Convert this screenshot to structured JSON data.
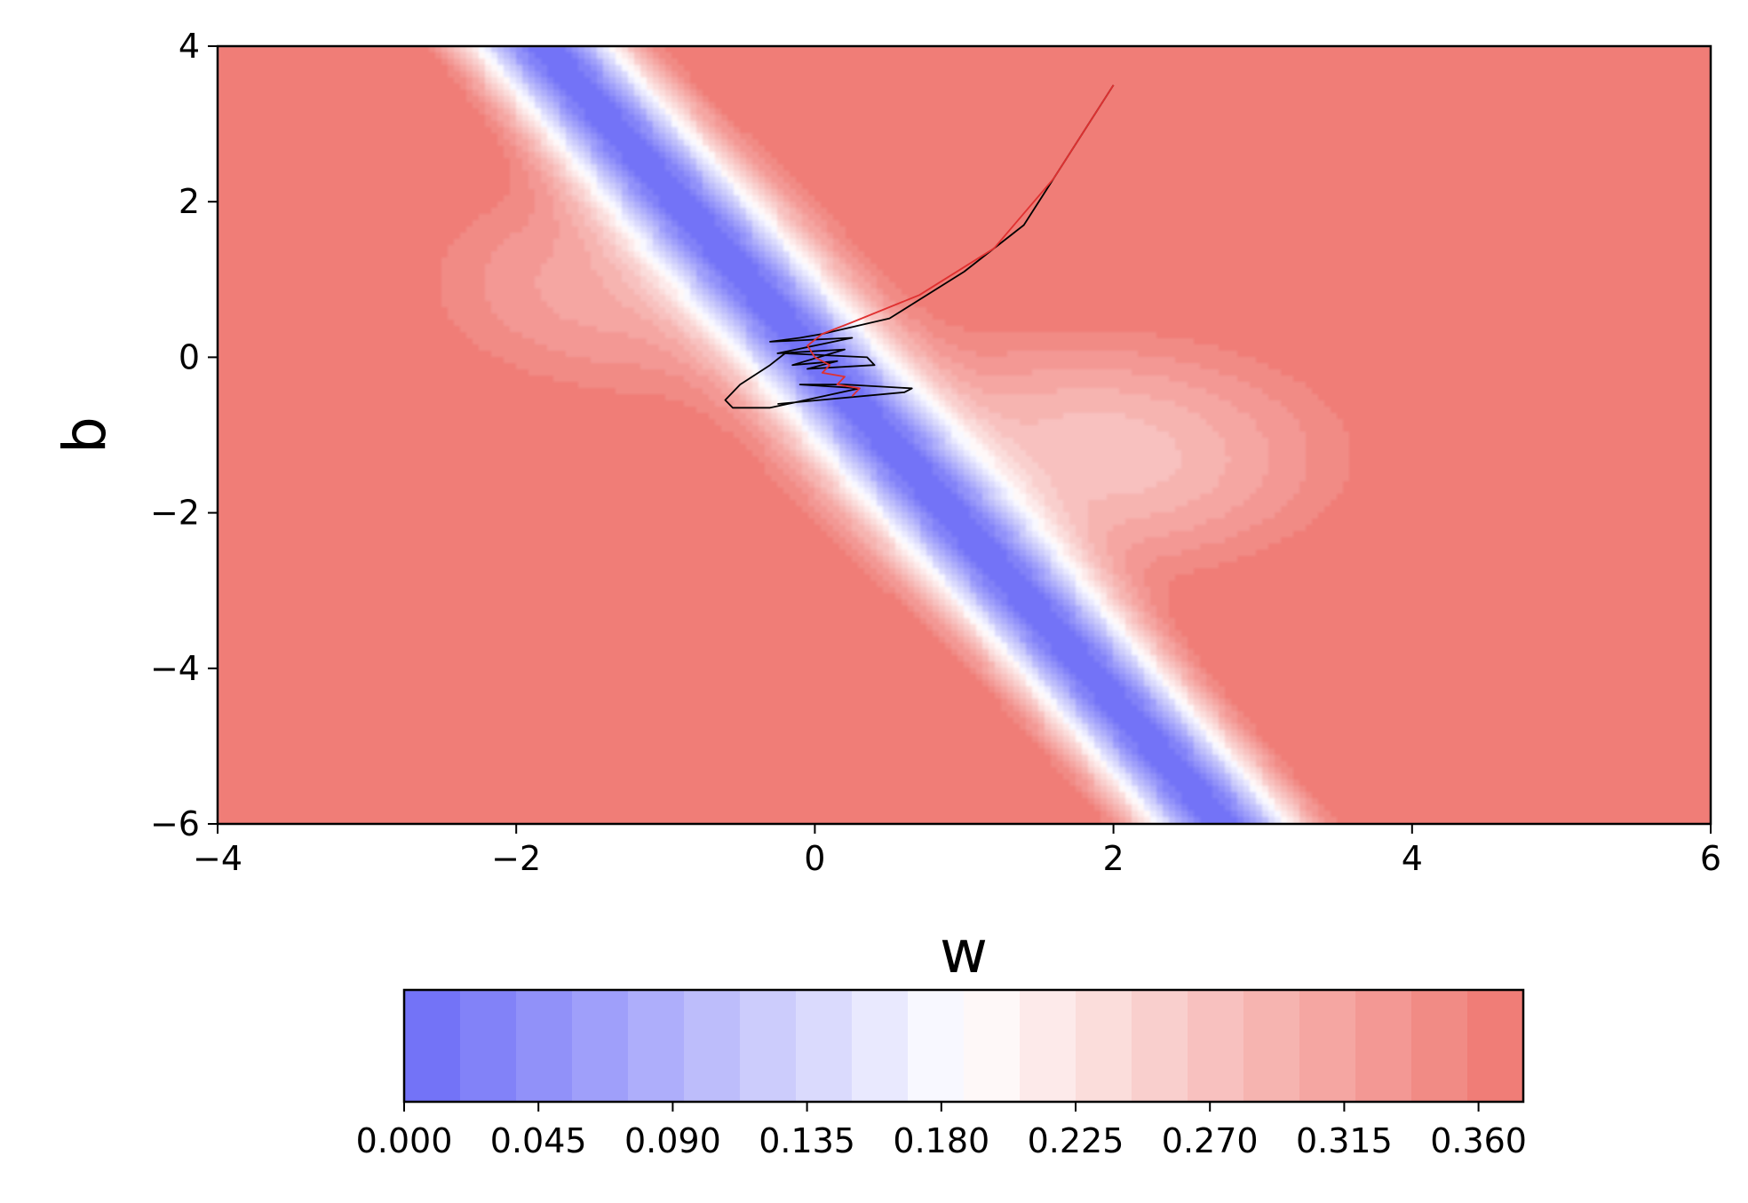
{
  "chart_data": {
    "type": "heatmap",
    "subtype": "filled-contour",
    "title": "",
    "xlabel": "w",
    "ylabel": "b",
    "xlim": [
      -4,
      6
    ],
    "ylim": [
      -6,
      4
    ],
    "xticks": [
      -4,
      -2,
      0,
      2,
      4,
      6
    ],
    "xtick_labels": [
      "−4",
      "−2",
      "0",
      "2",
      "4",
      "6"
    ],
    "yticks": [
      -6,
      -4,
      -2,
      0,
      2,
      4
    ],
    "ytick_labels": [
      "−6",
      "−4",
      "−2",
      "0",
      "2",
      "4"
    ],
    "colormap": "bwr",
    "color_low": "#6c6cf7",
    "color_mid": "#ffffff",
    "color_high": "#ef7670",
    "colorbar": {
      "orientation": "horizontal",
      "range": [
        0.0,
        0.375
      ],
      "levels": 20,
      "ticks": [
        0.0,
        0.045,
        0.09,
        0.135,
        0.18,
        0.225,
        0.27,
        0.315,
        0.36
      ],
      "tick_labels": [
        "0.000",
        "0.045",
        "0.090",
        "0.135",
        "0.180",
        "0.225",
        "0.270",
        "0.315",
        "0.360"
      ]
    },
    "surface_features": {
      "minimum": [
        0.0,
        0.0
      ],
      "valley_slope_db_dw": -2.2
    },
    "series": [
      {
        "color": "#000000",
        "points": [
          [
            2.0,
            3.5
          ],
          [
            1.7,
            2.6
          ],
          [
            1.4,
            1.7
          ],
          [
            1.0,
            1.1
          ],
          [
            0.5,
            0.5
          ],
          [
            0.05,
            0.3
          ],
          [
            -0.1,
            0.25
          ],
          [
            -0.3,
            0.2
          ],
          [
            0.25,
            0.25
          ],
          [
            -0.25,
            0.05
          ],
          [
            0.2,
            0.1
          ],
          [
            -0.15,
            -0.1
          ],
          [
            0.15,
            -0.05
          ],
          [
            -0.05,
            -0.15
          ],
          [
            0.4,
            -0.1
          ],
          [
            0.35,
            0.0
          ],
          [
            -0.2,
            0.05
          ],
          [
            -0.3,
            -0.1
          ],
          [
            -0.5,
            -0.35
          ],
          [
            -0.6,
            -0.55
          ],
          [
            -0.55,
            -0.65
          ],
          [
            -0.3,
            -0.65
          ],
          [
            0.3,
            -0.4
          ],
          [
            -0.1,
            -0.35
          ],
          [
            0.2,
            -0.35
          ],
          [
            0.65,
            -0.4
          ],
          [
            0.6,
            -0.45
          ],
          [
            -0.25,
            -0.6
          ]
        ]
      },
      {
        "color": "#e03030",
        "points": [
          [
            2.0,
            3.5
          ],
          [
            1.6,
            2.3
          ],
          [
            1.2,
            1.4
          ],
          [
            0.7,
            0.8
          ],
          [
            0.25,
            0.45
          ],
          [
            0.05,
            0.3
          ],
          [
            -0.05,
            0.15
          ],
          [
            0.0,
            0.0
          ],
          [
            0.1,
            -0.1
          ],
          [
            0.05,
            -0.2
          ],
          [
            0.2,
            -0.25
          ],
          [
            0.15,
            -0.35
          ],
          [
            0.3,
            -0.4
          ],
          [
            0.25,
            -0.5
          ]
        ]
      }
    ]
  }
}
